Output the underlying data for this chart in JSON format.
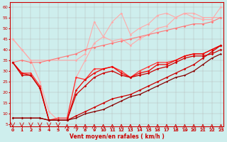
{
  "xlabel": "Vent moyen/en rafales ( km/h )",
  "background_color": "#ceeeed",
  "grid_color": "#aaaaaa",
  "x_ticks": [
    0,
    1,
    2,
    3,
    4,
    5,
    6,
    7,
    8,
    9,
    10,
    11,
    12,
    13,
    14,
    15,
    16,
    17,
    18,
    19,
    20,
    21,
    22,
    23
  ],
  "y_ticks": [
    5,
    10,
    15,
    20,
    25,
    30,
    35,
    40,
    45,
    50,
    55,
    60
  ],
  "xlim": [
    -0.3,
    23.3
  ],
  "ylim": [
    4,
    62
  ],
  "series": [
    {
      "color": "#ffaaaa",
      "alpha": 1.0,
      "linewidth": 0.8,
      "marker": "D",
      "markersize": 1.8,
      "x": [
        0,
        1,
        2,
        7,
        8,
        9,
        10,
        11,
        12,
        13,
        14,
        15,
        16,
        17,
        18,
        19,
        20,
        21,
        22,
        23
      ],
      "y": [
        45,
        40,
        35,
        35,
        38,
        53,
        46,
        53,
        57,
        47,
        50,
        52,
        56,
        57,
        55,
        57,
        55,
        54,
        54,
        60
      ]
    },
    {
      "color": "#ffaaaa",
      "alpha": 1.0,
      "linewidth": 0.8,
      "marker": "D",
      "markersize": 1.8,
      "x": [
        0,
        1,
        2,
        3,
        4,
        5,
        6,
        7,
        8,
        9,
        10,
        11,
        12,
        13,
        14,
        15,
        16,
        17,
        18,
        19,
        20,
        21,
        22,
        23
      ],
      "y": [
        45,
        40,
        35,
        25,
        11,
        7,
        7,
        27,
        35,
        43,
        46,
        44,
        45,
        42,
        45,
        47,
        50,
        51,
        55,
        57,
        57,
        55,
        55,
        55
      ]
    },
    {
      "color": "#ff7777",
      "alpha": 1.0,
      "linewidth": 0.8,
      "marker": "D",
      "markersize": 1.8,
      "x": [
        0,
        1,
        2,
        3,
        4,
        5,
        6,
        7,
        8,
        9,
        10,
        11,
        12,
        13,
        14,
        15,
        16,
        17,
        18,
        19,
        20,
        21,
        22,
        23
      ],
      "y": [
        34,
        35,
        34,
        34,
        35,
        36,
        37,
        38,
        40,
        41,
        42,
        43,
        44,
        45,
        46,
        47,
        48,
        49,
        50,
        51,
        52,
        52,
        53,
        55
      ]
    },
    {
      "color": "#ff3333",
      "alpha": 1.0,
      "linewidth": 0.9,
      "marker": "D",
      "markersize": 1.8,
      "x": [
        0,
        1,
        2,
        3,
        4,
        5,
        6,
        7,
        8,
        9,
        10,
        11,
        12,
        13,
        14,
        15,
        16,
        17,
        18,
        19,
        20,
        21,
        22,
        23
      ],
      "y": [
        34,
        29,
        29,
        23,
        7,
        8,
        8,
        27,
        26,
        31,
        31,
        32,
        30,
        27,
        30,
        32,
        34,
        34,
        35,
        37,
        38,
        38,
        40,
        42
      ]
    },
    {
      "color": "#ee0000",
      "alpha": 1.0,
      "linewidth": 0.9,
      "marker": "D",
      "markersize": 1.8,
      "x": [
        0,
        1,
        2,
        3,
        4,
        5,
        6,
        7,
        8,
        9,
        10,
        11,
        12,
        13,
        14,
        15,
        16,
        17,
        18,
        19,
        20,
        21,
        22,
        23
      ],
      "y": [
        34,
        29,
        28,
        22,
        7,
        7,
        7,
        21,
        26,
        29,
        31,
        32,
        29,
        27,
        29,
        30,
        33,
        33,
        35,
        37,
        38,
        38,
        40,
        42
      ]
    },
    {
      "color": "#cc0000",
      "alpha": 1.0,
      "linewidth": 0.9,
      "marker": "D",
      "markersize": 1.8,
      "x": [
        0,
        1,
        2,
        3,
        4,
        5,
        6,
        7,
        8,
        9,
        10,
        11,
        12,
        13,
        14,
        15,
        16,
        17,
        18,
        19,
        20,
        21,
        22,
        23
      ],
      "y": [
        34,
        28,
        28,
        22,
        7,
        7,
        7,
        19,
        23,
        27,
        29,
        30,
        28,
        27,
        28,
        29,
        31,
        32,
        34,
        36,
        37,
        37,
        38,
        40
      ]
    },
    {
      "color": "#cc0000",
      "alpha": 1.0,
      "linewidth": 0.9,
      "marker": "D",
      "markersize": 1.8,
      "x": [
        0,
        1,
        2,
        3,
        4,
        5,
        6,
        7,
        8,
        9,
        10,
        11,
        12,
        13,
        14,
        15,
        16,
        17,
        18,
        19,
        20,
        21,
        22,
        23
      ],
      "y": [
        8,
        8,
        8,
        8,
        7,
        7,
        7,
        9,
        11,
        13,
        15,
        17,
        18,
        19,
        21,
        23,
        25,
        27,
        29,
        31,
        33,
        36,
        39,
        42
      ]
    },
    {
      "color": "#880000",
      "alpha": 1.0,
      "linewidth": 0.9,
      "marker": "D",
      "markersize": 1.5,
      "x": [
        0,
        1,
        2,
        3,
        4,
        5,
        6,
        7,
        8,
        9,
        10,
        11,
        12,
        13,
        14,
        15,
        16,
        17,
        18,
        19,
        20,
        21,
        22,
        23
      ],
      "y": [
        8,
        8,
        8,
        8,
        7,
        7,
        7,
        8,
        10,
        11,
        12,
        14,
        16,
        18,
        19,
        21,
        23,
        25,
        27,
        28,
        30,
        33,
        36,
        38
      ]
    }
  ],
  "wind_arrows_down": [
    0,
    1,
    2,
    3,
    4,
    5
  ],
  "wind_arrows_up": [
    6,
    7,
    8,
    9,
    10,
    11,
    12,
    13,
    14,
    15,
    16,
    17,
    18,
    19,
    20,
    21,
    22,
    23
  ],
  "arrow_color": "#cc0000",
  "xlabel_color": "#cc0000",
  "tick_color": "#cc0000"
}
